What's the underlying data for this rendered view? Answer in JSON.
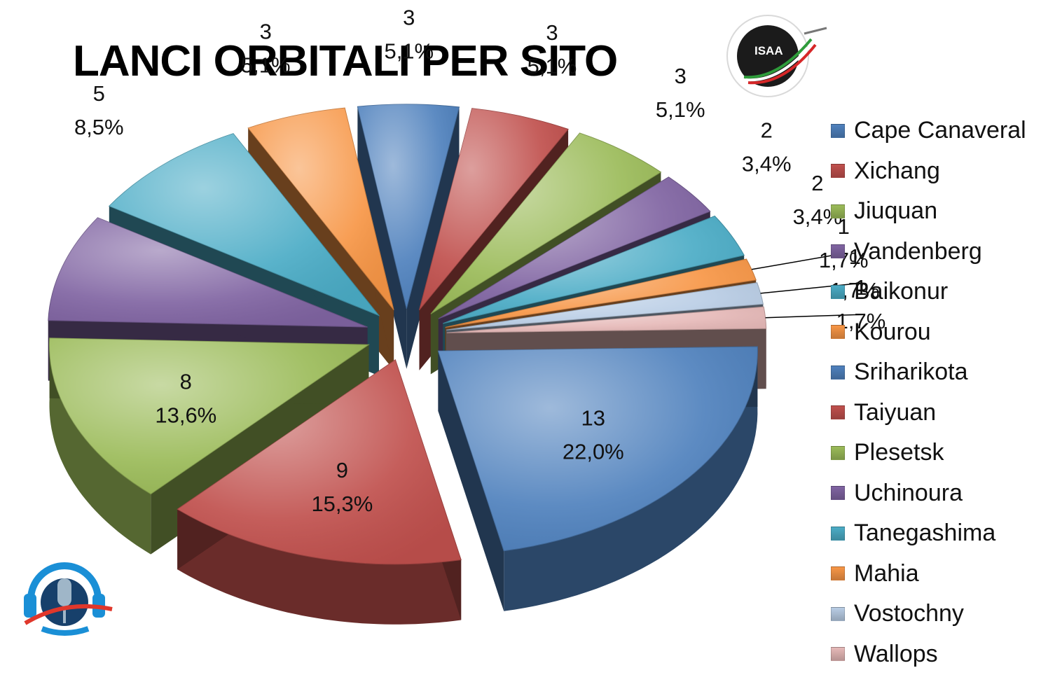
{
  "chart_data": {
    "type": "pie",
    "title": "LANCI ORBITALI PER SITO",
    "slices": [
      {
        "label": "Cape Canaveral",
        "value": 13,
        "percent": "22,0%",
        "color": "#4F81BD"
      },
      {
        "label": "Xichang",
        "value": 9,
        "percent": "15,3%",
        "color": "#C0504D"
      },
      {
        "label": "Jiuquan",
        "value": 8,
        "percent": "13,6%",
        "color": "#9BBB59"
      },
      {
        "label": "Vandenberg",
        "value": 5,
        "percent": "8,5%",
        "color": "#8064A2"
      },
      {
        "label": "Baikonur",
        "value": 5,
        "percent": "8,5%",
        "color": "#4BACC6"
      },
      {
        "label": "Kourou",
        "value": 3,
        "percent": "5,1%",
        "color": "#F79646"
      },
      {
        "label": "Sriharikota",
        "value": 3,
        "percent": "5,1%",
        "color": "#4F81BD"
      },
      {
        "label": "Taiyuan",
        "value": 3,
        "percent": "5,1%",
        "color": "#C0504D"
      },
      {
        "label": "Plesetsk",
        "value": 3,
        "percent": "5,1%",
        "color": "#9BBB59"
      },
      {
        "label": "Uchinoura",
        "value": 2,
        "percent": "3,4%",
        "color": "#8064A2"
      },
      {
        "label": "Tanegashima",
        "value": 2,
        "percent": "3,4%",
        "color": "#4BACC6"
      },
      {
        "label": "Mahia",
        "value": 1,
        "percent": "1,7%",
        "color": "#F79646"
      },
      {
        "label": "Vostochny",
        "value": 1,
        "percent": "1,7%",
        "color": "#B9CDE5"
      },
      {
        "label": "Wallops",
        "value": 1,
        "percent": "1,7%",
        "color": "#E6B9B8"
      }
    ],
    "legend_position": "right",
    "style": "3d exploded pie"
  },
  "logos": {
    "top_right": "ISAA",
    "bottom_left": "podcast-microphone-emblem"
  }
}
